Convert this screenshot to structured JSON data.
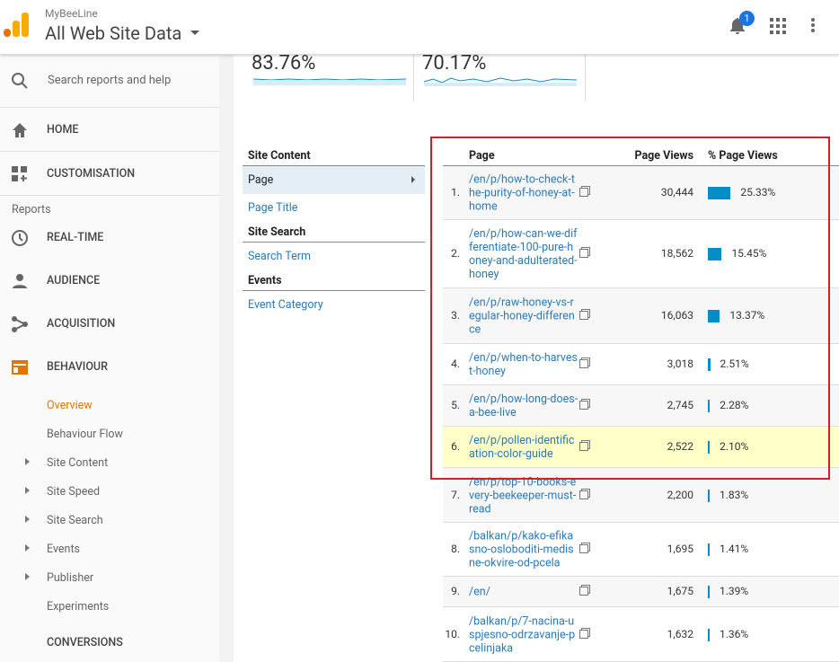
{
  "header": {
    "account": "MyBeeLine",
    "property": "All Web Site Data",
    "notifications": "1"
  },
  "metrics": [
    "83.76%",
    "70.17%"
  ],
  "sidebar": {
    "search": "Search reports and help",
    "home": "HOME",
    "customisation": "CUSTOMISATION",
    "reports": "Reports",
    "sections": [
      "REAL-TIME",
      "AUDIENCE",
      "ACQUISITION",
      "BEHAVIOUR"
    ],
    "behaviour_items": [
      "Overview",
      "Behaviour Flow",
      "Site Content",
      "Site Speed",
      "Site Search",
      "Events",
      "Publisher",
      "Experiments"
    ],
    "conversions": "CONVERSIONS"
  },
  "dimensions": [
    {
      "title": "Site Content",
      "items": [
        "Page",
        "Page Title"
      ]
    },
    {
      "title": "Site Search",
      "items": [
        "Search Term"
      ]
    },
    {
      "title": "Events",
      "items": [
        "Event Category"
      ]
    }
  ],
  "table": {
    "columns": [
      "Page",
      "Page Views",
      "% Page Views"
    ],
    "rows": [
      [
        "1.",
        "/en/p/how-to-check-the-purity-of-honey-at-home",
        "30,444",
        "25.33%"
      ],
      [
        "2.",
        "/en/p/how-can-we-differentiate-100-pure-honey-and-adulterated-honey",
        "18,562",
        "15.45%"
      ],
      [
        "3.",
        "/en/p/raw-honey-vs-regular-honey-difference",
        "16,063",
        "13.37%"
      ],
      [
        "4.",
        "/en/p/when-to-harvest-honey",
        "3,018",
        "2.51%"
      ],
      [
        "5.",
        "/en/p/how-long-does-a-bee-live",
        "2,745",
        "2.28%"
      ],
      [
        "6.",
        "/en/p/pollen-identification-color-guide",
        "2,522",
        "2.10%"
      ],
      [
        "7.",
        "/en/p/top-10-books-every-beekeeper-must-read",
        "2,200",
        "1.83%"
      ],
      [
        "8.",
        "/balkan/p/kako-efikasno-osloboditi-medisne-okvire-od-pcela",
        "1,695",
        "1.41%"
      ],
      [
        "9.",
        "/en/",
        "1,675",
        "1.39%"
      ],
      [
        "10.",
        "/balkan/p/7-nacina-uspjesno-odrzavanje-pcelinjaka",
        "1,632",
        "1.36%"
      ]
    ]
  }
}
